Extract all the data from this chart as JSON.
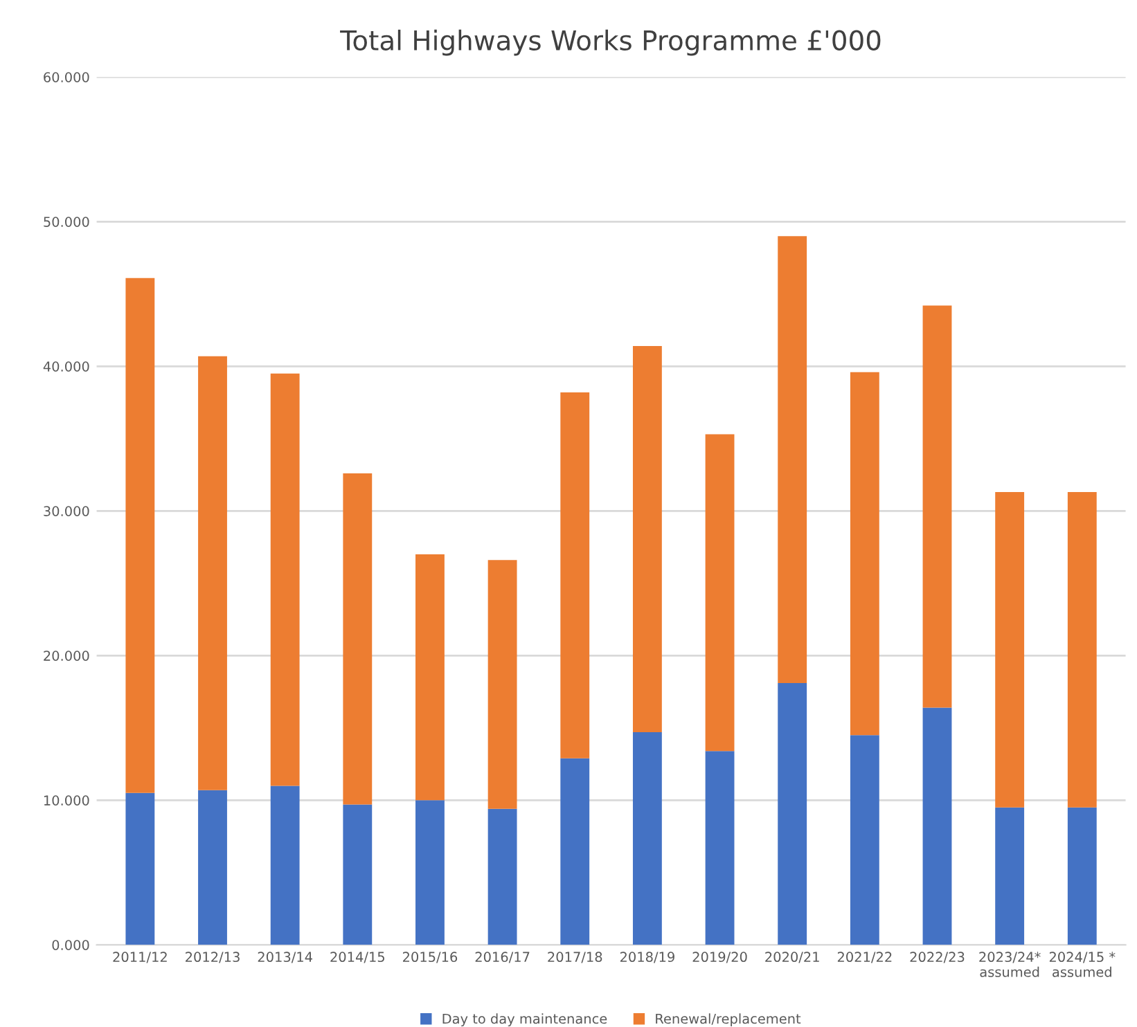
{
  "chart_data": {
    "type": "bar",
    "title": "Total Highways Works Programme £'000",
    "stacked": true,
    "categories": [
      "2011/12",
      "2012/13",
      "2013/14",
      "2014/15",
      "2015/16",
      "2016/17",
      "2017/18",
      "2018/19",
      "2019/20",
      "2020/21",
      "2021/22",
      "2022/23",
      "2023/24*\nassumed",
      "2024/15 *\nassumed"
    ],
    "series": [
      {
        "name": "Day to day maintenance",
        "color": "#4472c4",
        "values": [
          10.5,
          10.7,
          11.0,
          9.7,
          10.0,
          9.4,
          12.9,
          14.7,
          13.4,
          18.1,
          14.5,
          16.4,
          9.5,
          9.5
        ]
      },
      {
        "name": "Renewal/replacement",
        "color": "#ed7d31",
        "values": [
          35.6,
          30.0,
          28.5,
          22.9,
          17.0,
          17.2,
          25.3,
          26.7,
          21.9,
          30.9,
          25.1,
          27.8,
          21.8,
          21.8
        ]
      }
    ],
    "ylim": [
      0,
      60
    ],
    "yticks": [
      {
        "value": 0,
        "label": "0.000"
      },
      {
        "value": 10,
        "label": "10.000"
      },
      {
        "value": 20,
        "label": "20.000"
      },
      {
        "value": 30,
        "label": "30.000"
      },
      {
        "value": 40,
        "label": "40.000"
      },
      {
        "value": 50,
        "label": "50.000"
      },
      {
        "value": 60,
        "label": "60.000"
      }
    ],
    "grid": "y",
    "legend": "bottom"
  }
}
